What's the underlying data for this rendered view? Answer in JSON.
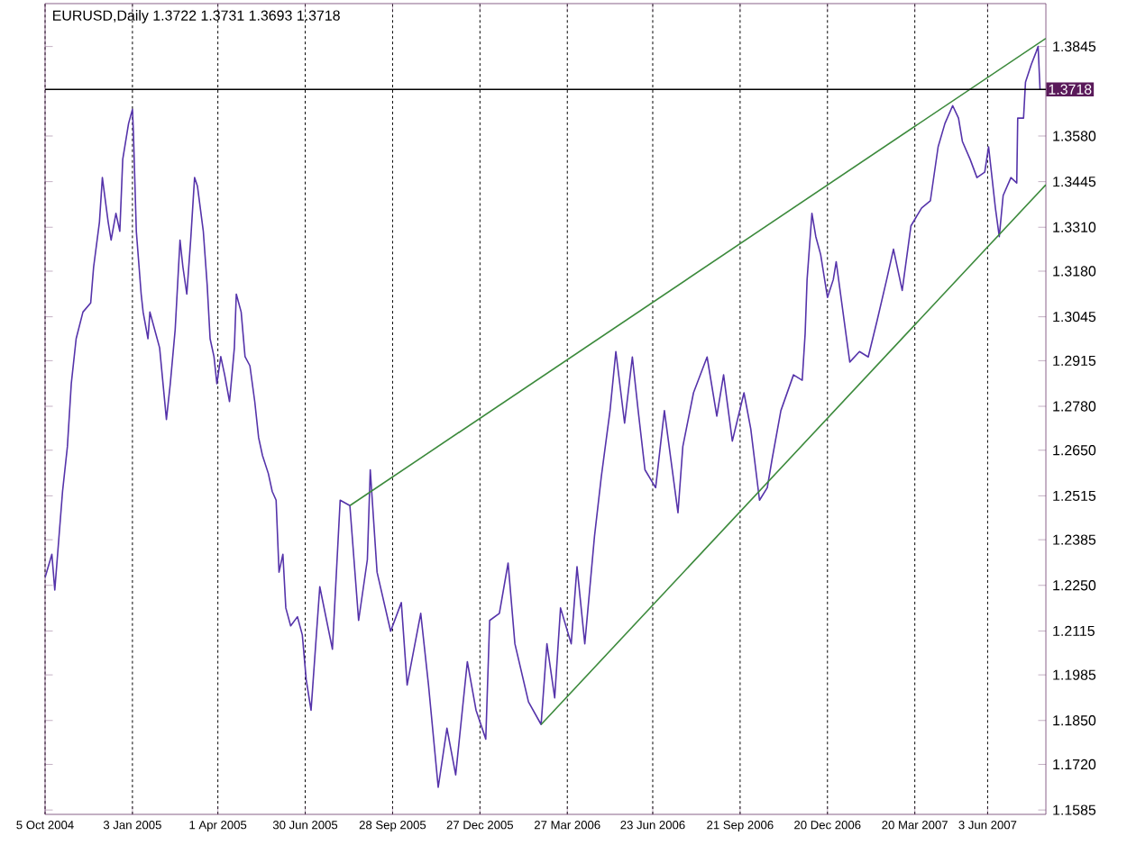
{
  "chart_data": {
    "type": "line",
    "title": "EURUSD,Daily  1.3722 1.3731 1.3693 1.3718",
    "xlim": [
      "2004-10-05",
      "2007-08-02"
    ],
    "ylim": [
      1.1572,
      1.3972
    ],
    "xticks": [
      {
        "value": "2004-10-05",
        "label": "5 Oct 2004"
      },
      {
        "value": "2005-01-03",
        "label": "3 Jan 2005"
      },
      {
        "value": "2005-04-01",
        "label": "1 Apr 2005"
      },
      {
        "value": "2005-06-30",
        "label": "30 Jun 2005"
      },
      {
        "value": "2005-09-28",
        "label": "28 Sep 2005"
      },
      {
        "value": "2005-12-27",
        "label": "27 Dec 2005"
      },
      {
        "value": "2006-03-27",
        "label": "27 Mar 2006"
      },
      {
        "value": "2006-06-23",
        "label": "23 Jun 2006"
      },
      {
        "value": "2006-09-21",
        "label": "21 Sep 2006"
      },
      {
        "value": "2006-12-20",
        "label": "20 Dec 2006"
      },
      {
        "value": "2007-03-20",
        "label": "20 Mar 2007"
      },
      {
        "value": "2007-06-03",
        "label": "3 Jun 2007"
      }
    ],
    "yticks": [
      {
        "value": 1.3845,
        "label": "1.3845"
      },
      {
        "value": 1.358,
        "label": "1.3580"
      },
      {
        "value": 1.3445,
        "label": "1.3445"
      },
      {
        "value": 1.331,
        "label": "1.3310"
      },
      {
        "value": 1.318,
        "label": "1.3180"
      },
      {
        "value": 1.3045,
        "label": "1.3045"
      },
      {
        "value": 1.2915,
        "label": "1.2915"
      },
      {
        "value": 1.278,
        "label": "1.2780"
      },
      {
        "value": 1.265,
        "label": "1.2650"
      },
      {
        "value": 1.2515,
        "label": "1.2515"
      },
      {
        "value": 1.2385,
        "label": "1.2385"
      },
      {
        "value": 1.225,
        "label": "1.2250"
      },
      {
        "value": 1.2115,
        "label": "1.2115"
      },
      {
        "value": 1.1985,
        "label": "1.1985"
      },
      {
        "value": 1.185,
        "label": "1.1850"
      },
      {
        "value": 1.172,
        "label": "1.1720"
      },
      {
        "value": 1.1585,
        "label": "1.1585"
      }
    ],
    "grid": "x",
    "ref_lines": [
      {
        "axis": "y",
        "value": 1.3718,
        "label": "1.3718",
        "color": "#000000"
      }
    ],
    "series": [
      {
        "color": "#5533aa",
        "x": [
          "2004-10-05",
          "2004-10-12",
          "2004-10-15",
          "2004-10-23",
          "2004-10-28",
          "2004-11-01",
          "2004-11-06",
          "2004-11-13",
          "2004-11-21",
          "2004-11-24",
          "2004-11-30",
          "2004-12-03",
          "2004-12-09",
          "2004-12-12",
          "2004-12-17",
          "2004-12-21",
          "2004-12-24",
          "2004-12-30",
          "2005-01-03",
          "2005-01-04",
          "2005-01-07",
          "2005-01-12",
          "2005-01-14",
          "2005-01-19",
          "2005-01-21",
          "2005-01-26",
          "2005-01-31",
          "2005-02-07",
          "2005-02-11",
          "2005-02-16",
          "2005-02-21",
          "2005-02-24",
          "2005-02-28",
          "2005-03-04",
          "2005-03-08",
          "2005-03-11",
          "2005-03-17",
          "2005-03-21",
          "2005-03-24",
          "2005-03-28",
          "2005-03-31",
          "2005-04-04",
          "2005-04-08",
          "2005-04-13",
          "2005-04-18",
          "2005-04-20",
          "2005-04-25",
          "2005-04-29",
          "2005-05-04",
          "2005-05-09",
          "2005-05-13",
          "2005-05-17",
          "2005-05-23",
          "2005-05-27",
          "2005-05-31",
          "2005-06-03",
          "2005-06-07",
          "2005-06-10",
          "2005-06-15",
          "2005-06-22",
          "2005-06-27",
          "2005-07-01",
          "2005-07-06",
          "2005-07-15",
          "2005-07-28",
          "2005-08-05",
          "2005-08-15",
          "2005-08-24",
          "2005-09-02",
          "2005-09-05",
          "2005-09-12",
          "2005-09-26",
          "2005-10-07",
          "2005-10-13",
          "2005-10-27",
          "2005-11-04",
          "2005-11-14",
          "2005-11-23",
          "2005-12-02",
          "2005-12-14",
          "2005-12-23",
          "2006-01-02",
          "2006-01-06",
          "2006-01-16",
          "2006-01-25",
          "2006-02-01",
          "2006-02-15",
          "2006-02-28",
          "2006-03-06",
          "2006-03-14",
          "2006-03-20",
          "2006-03-31",
          "2006-04-06",
          "2006-04-14",
          "2006-04-24",
          "2006-05-01",
          "2006-05-10",
          "2006-05-16",
          "2006-05-25",
          "2006-06-02",
          "2006-06-08",
          "2006-06-15",
          "2006-06-26",
          "2006-07-05",
          "2006-07-19",
          "2006-07-24",
          "2006-08-04",
          "2006-08-18",
          "2006-08-28",
          "2006-09-04",
          "2006-09-13",
          "2006-09-25",
          "2006-10-02",
          "2006-10-11",
          "2006-10-19",
          "2006-10-24",
          "2006-11-02",
          "2006-11-15",
          "2006-11-24",
          "2006-11-27",
          "2006-11-29",
          "2006-12-04",
          "2006-12-08",
          "2006-12-13",
          "2006-12-20",
          "2006-12-26",
          "2006-12-29",
          "2007-01-08",
          "2007-01-12",
          "2007-01-22",
          "2007-01-31",
          "2007-02-09",
          "2007-02-19",
          "2007-02-26",
          "2007-03-07",
          "2007-03-16",
          "2007-03-27",
          "2007-04-05",
          "2007-04-13",
          "2007-04-20",
          "2007-04-28",
          "2007-05-04",
          "2007-05-08",
          "2007-05-16",
          "2007-05-23",
          "2007-05-31",
          "2007-06-04",
          "2007-06-11",
          "2007-06-15",
          "2007-06-19",
          "2007-06-27",
          "2007-07-03",
          "2007-07-04",
          "2007-07-10",
          "2007-07-12",
          "2007-07-18",
          "2007-07-23",
          "2007-07-25",
          "2007-07-27"
        ],
        "values": [
          1.2273,
          1.2342,
          1.2236,
          1.2528,
          1.2661,
          1.2847,
          1.298,
          1.3059,
          1.3086,
          1.3192,
          1.3325,
          1.3457,
          1.3325,
          1.3272,
          1.3351,
          1.3298,
          1.3511,
          1.3617,
          1.3659,
          1.359,
          1.3298,
          1.3112,
          1.3059,
          1.298,
          1.3059,
          1.3006,
          1.2953,
          1.2741,
          1.2847,
          1.3006,
          1.3272,
          1.3192,
          1.3112,
          1.3272,
          1.3457,
          1.3431,
          1.3298,
          1.3139,
          1.298,
          1.2927,
          1.2847,
          1.2927,
          1.2873,
          1.2794,
          1.2953,
          1.3112,
          1.3059,
          1.2927,
          1.29,
          1.2794,
          1.2687,
          1.2634,
          1.2581,
          1.2528,
          1.2502,
          1.2289,
          1.2342,
          1.2183,
          1.213,
          1.2157,
          1.2103,
          1.1971,
          1.188,
          1.2246,
          1.2061,
          1.2502,
          1.2486,
          1.2146,
          1.2326,
          1.2592,
          1.2289,
          1.2114,
          1.2199,
          1.1955,
          1.2167,
          1.1955,
          1.1652,
          1.1827,
          1.1689,
          1.2024,
          1.188,
          1.1795,
          1.2146,
          1.2167,
          1.2316,
          1.2077,
          1.1905,
          1.1838,
          1.2077,
          1.1917,
          1.2183,
          1.2077,
          1.2305,
          1.2077,
          1.2395,
          1.2571,
          1.2767,
          1.2942,
          1.273,
          1.2926,
          1.2767,
          1.2592,
          1.2539,
          1.2767,
          1.2465,
          1.2661,
          1.282,
          1.2926,
          1.2751,
          1.2873,
          1.2677,
          1.282,
          1.2713,
          1.2502,
          1.2539,
          1.2624,
          1.2767,
          1.2873,
          1.2857,
          1.2995,
          1.3155,
          1.3351,
          1.3282,
          1.3229,
          1.3102,
          1.3155,
          1.3208,
          1.2995,
          1.2911,
          1.2942,
          1.2926,
          1.3032,
          1.3155,
          1.3245,
          1.3123,
          1.3314,
          1.3367,
          1.3388,
          1.3548,
          1.3617,
          1.367,
          1.3633,
          1.3564,
          1.3511,
          1.3457,
          1.3473,
          1.3548,
          1.3367,
          1.3282,
          1.3404,
          1.3457,
          1.3441,
          1.3633,
          1.3633,
          1.3739,
          1.3792,
          1.3829,
          1.3845,
          1.3718
        ]
      },
      {
        "type": "line",
        "color": "#3c8a3c",
        "x": [
          "2005-08-15",
          "2007-08-02"
        ],
        "values": [
          1.2486,
          1.3869
        ]
      },
      {
        "type": "line",
        "color": "#3c8a3c",
        "x": [
          "2006-02-28",
          "2007-08-02"
        ],
        "values": [
          1.1838,
          1.3436
        ]
      }
    ]
  }
}
